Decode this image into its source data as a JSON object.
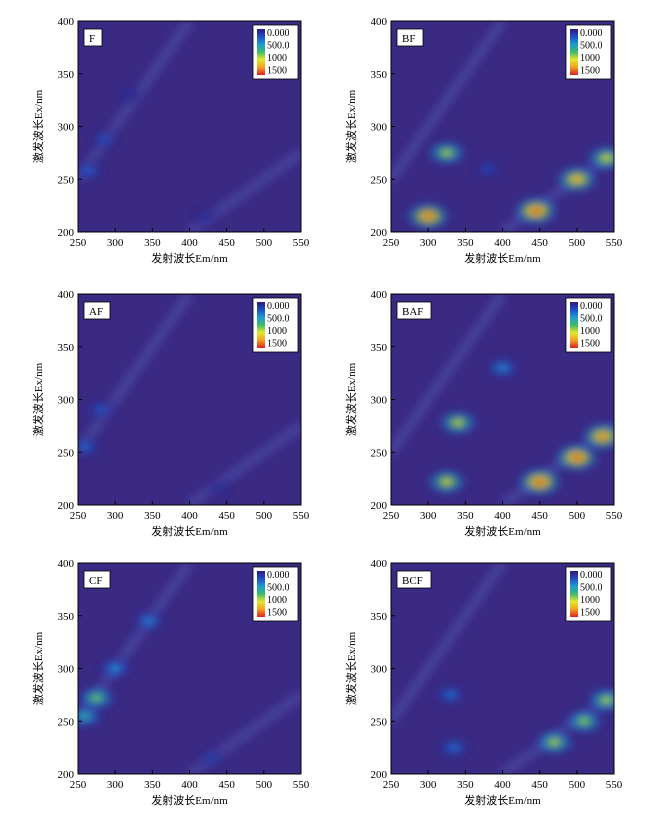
{
  "figure": {
    "xlabel": "发射波长Em/nm",
    "ylabel": "激发波长Ex/nm",
    "xticks": [
      250,
      300,
      350,
      400,
      450,
      500,
      550
    ],
    "yticks": [
      200,
      250,
      300,
      350,
      400
    ],
    "colorbar_labels": [
      "0.000",
      "500.0",
      "1000",
      "1500"
    ],
    "colors": {
      "background": "#3a2a84",
      "colormap": [
        "#2d1a7a",
        "#1f4fc2",
        "#1f9bd0",
        "#3dbb6a",
        "#e7e72b",
        "#f0a020",
        "#e02020"
      ]
    }
  },
  "chart_data": [
    {
      "type": "heatmap",
      "panel": "F",
      "xlim": [
        250,
        550
      ],
      "ylim": [
        200,
        400
      ],
      "zlim": [
        0,
        1500
      ],
      "xlabel": "发射波长Em/nm",
      "ylabel": "激发波长Ex/nm",
      "peaks": [
        {
          "em": 265,
          "ex": 258,
          "intensity": 320
        },
        {
          "em": 285,
          "ex": 288,
          "intensity": 260
        },
        {
          "em": 320,
          "ex": 330,
          "intensity": 120
        },
        {
          "em": 420,
          "ex": 215,
          "intensity": 120
        }
      ]
    },
    {
      "type": "heatmap",
      "panel": "BF",
      "xlim": [
        250,
        550
      ],
      "ylim": [
        200,
        400
      ],
      "zlim": [
        0,
        1500
      ],
      "xlabel": "发射波长Em/nm",
      "ylabel": "激发波长Ex/nm",
      "peaks": [
        {
          "em": 300,
          "ex": 215,
          "intensity": 1450
        },
        {
          "em": 325,
          "ex": 275,
          "intensity": 1000
        },
        {
          "em": 380,
          "ex": 260,
          "intensity": 250
        },
        {
          "em": 445,
          "ex": 220,
          "intensity": 1500
        },
        {
          "em": 500,
          "ex": 250,
          "intensity": 1300
        },
        {
          "em": 540,
          "ex": 270,
          "intensity": 1100
        }
      ]
    },
    {
      "type": "heatmap",
      "panel": "AF",
      "xlim": [
        250,
        550
      ],
      "ylim": [
        200,
        400
      ],
      "zlim": [
        0,
        1500
      ],
      "xlabel": "发射波长Em/nm",
      "ylabel": "激发波长Ex/nm",
      "peaks": [
        {
          "em": 260,
          "ex": 255,
          "intensity": 350
        },
        {
          "em": 280,
          "ex": 290,
          "intensity": 300
        },
        {
          "em": 440,
          "ex": 215,
          "intensity": 120
        }
      ]
    },
    {
      "type": "heatmap",
      "panel": "BAF",
      "xlim": [
        250,
        550
      ],
      "ylim": [
        200,
        400
      ],
      "zlim": [
        0,
        1500
      ],
      "xlabel": "发射波长Em/nm",
      "ylabel": "激发波长Ex/nm",
      "peaks": [
        {
          "em": 325,
          "ex": 222,
          "intensity": 1100
        },
        {
          "em": 340,
          "ex": 278,
          "intensity": 1050
        },
        {
          "em": 400,
          "ex": 330,
          "intensity": 500
        },
        {
          "em": 450,
          "ex": 222,
          "intensity": 1500
        },
        {
          "em": 500,
          "ex": 245,
          "intensity": 1500
        },
        {
          "em": 535,
          "ex": 265,
          "intensity": 1400
        }
      ]
    },
    {
      "type": "heatmap",
      "panel": "CF",
      "xlim": [
        250,
        550
      ],
      "ylim": [
        200,
        400
      ],
      "zlim": [
        0,
        1500
      ],
      "xlabel": "发射波长Em/nm",
      "ylabel": "激发波长Ex/nm",
      "peaks": [
        {
          "em": 260,
          "ex": 255,
          "intensity": 700
        },
        {
          "em": 275,
          "ex": 272,
          "intensity": 900
        },
        {
          "em": 300,
          "ex": 300,
          "intensity": 500
        },
        {
          "em": 345,
          "ex": 345,
          "intensity": 450
        },
        {
          "em": 430,
          "ex": 215,
          "intensity": 200
        }
      ]
    },
    {
      "type": "heatmap",
      "panel": "BCF",
      "xlim": [
        250,
        550
      ],
      "ylim": [
        200,
        400
      ],
      "zlim": [
        0,
        1500
      ],
      "xlabel": "发射波长Em/nm",
      "ylabel": "激发波长Ex/nm",
      "peaks": [
        {
          "em": 330,
          "ex": 275,
          "intensity": 400
        },
        {
          "em": 335,
          "ex": 225,
          "intensity": 400
        },
        {
          "em": 470,
          "ex": 230,
          "intensity": 1000
        },
        {
          "em": 510,
          "ex": 250,
          "intensity": 950
        },
        {
          "em": 540,
          "ex": 270,
          "intensity": 1000
        }
      ]
    }
  ]
}
